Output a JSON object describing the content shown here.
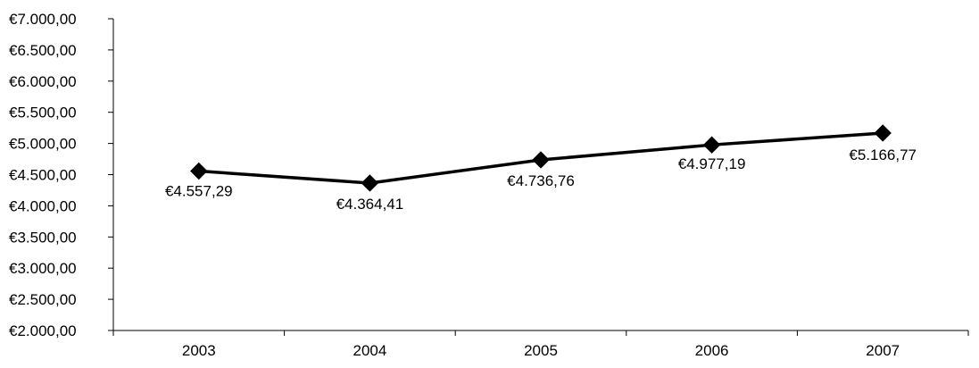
{
  "chart_data": {
    "type": "line",
    "title": "",
    "xlabel": "",
    "ylabel": "",
    "categories": [
      "2003",
      "2004",
      "2005",
      "2006",
      "2007"
    ],
    "series": [
      {
        "values": [
          4557.29,
          4364.41,
          4736.76,
          4977.19,
          5166.77
        ],
        "data_labels": [
          "€4.557,29",
          "€4.364,41",
          "€4.736,76",
          "€4.977,19",
          "€5.166,77"
        ],
        "color": "#000000",
        "marker": "diamond"
      }
    ],
    "ylim": [
      2000,
      7000
    ],
    "y_step": 500,
    "y_tick_labels": [
      "€2.000,00",
      "€2.500,00",
      "€3.000,00",
      "€3.500,00",
      "€4.000,00",
      "€4.500,00",
      "€5.000,00",
      "€5.500,00",
      "€6.000,00",
      "€6.500,00",
      "€7.000,00"
    ],
    "grid": false,
    "legend": "none"
  }
}
